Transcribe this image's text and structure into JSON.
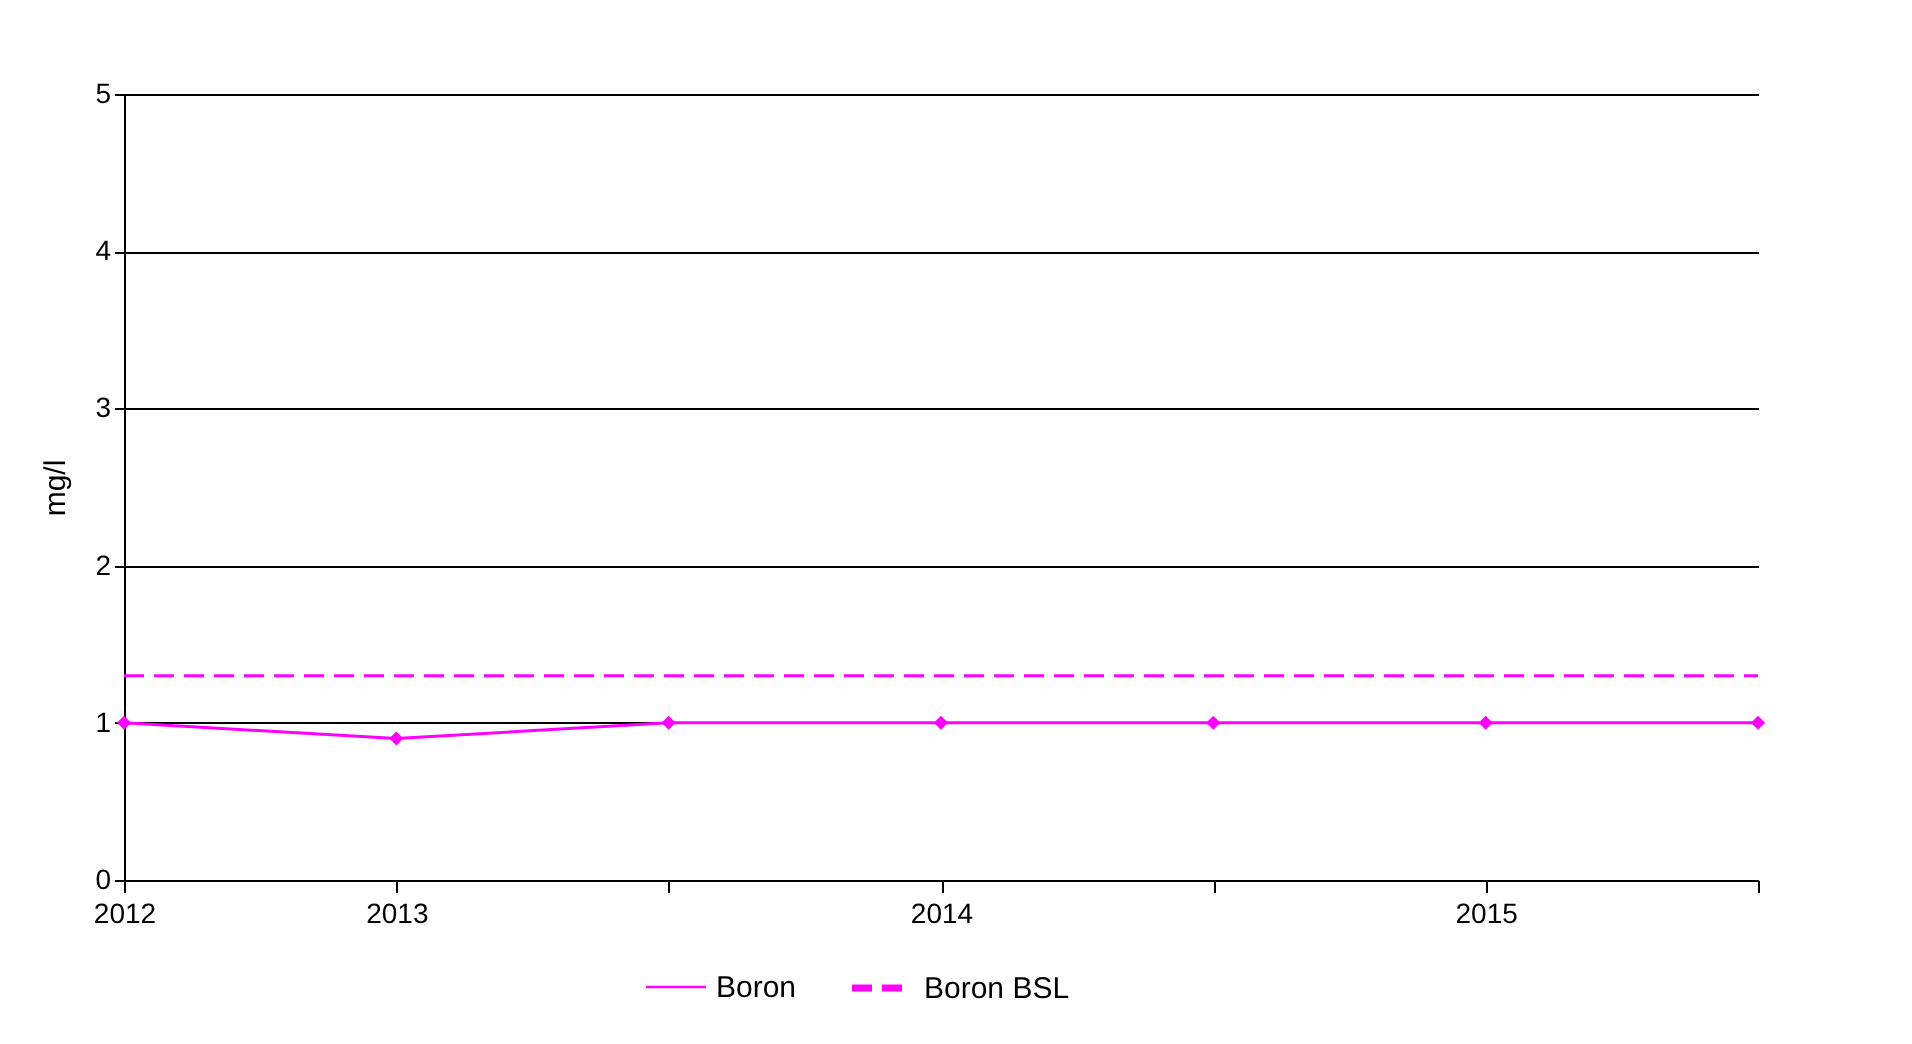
{
  "chart_data": {
    "type": "line",
    "ylabel": "mg/l",
    "categories": [
      "2012",
      "2013",
      null,
      "2014",
      null,
      "2015",
      null
    ],
    "series": [
      {
        "name": "Boron",
        "color": "#ff00ff",
        "values": [
          1,
          0.9,
          1,
          1,
          1,
          1,
          1
        ],
        "marker": "diamond",
        "line_style": "solid"
      },
      {
        "name": "Boron BSL",
        "color": "#ff00ff",
        "values": [
          1.3,
          1.3,
          1.3,
          1.3,
          1.3,
          1.3,
          1.3
        ],
        "marker": "none",
        "line_style": "dashed"
      }
    ],
    "ylim": [
      0,
      5
    ],
    "yticks": [
      0,
      1,
      2,
      3,
      4,
      5
    ],
    "grid": "y",
    "legend": "bottom"
  }
}
